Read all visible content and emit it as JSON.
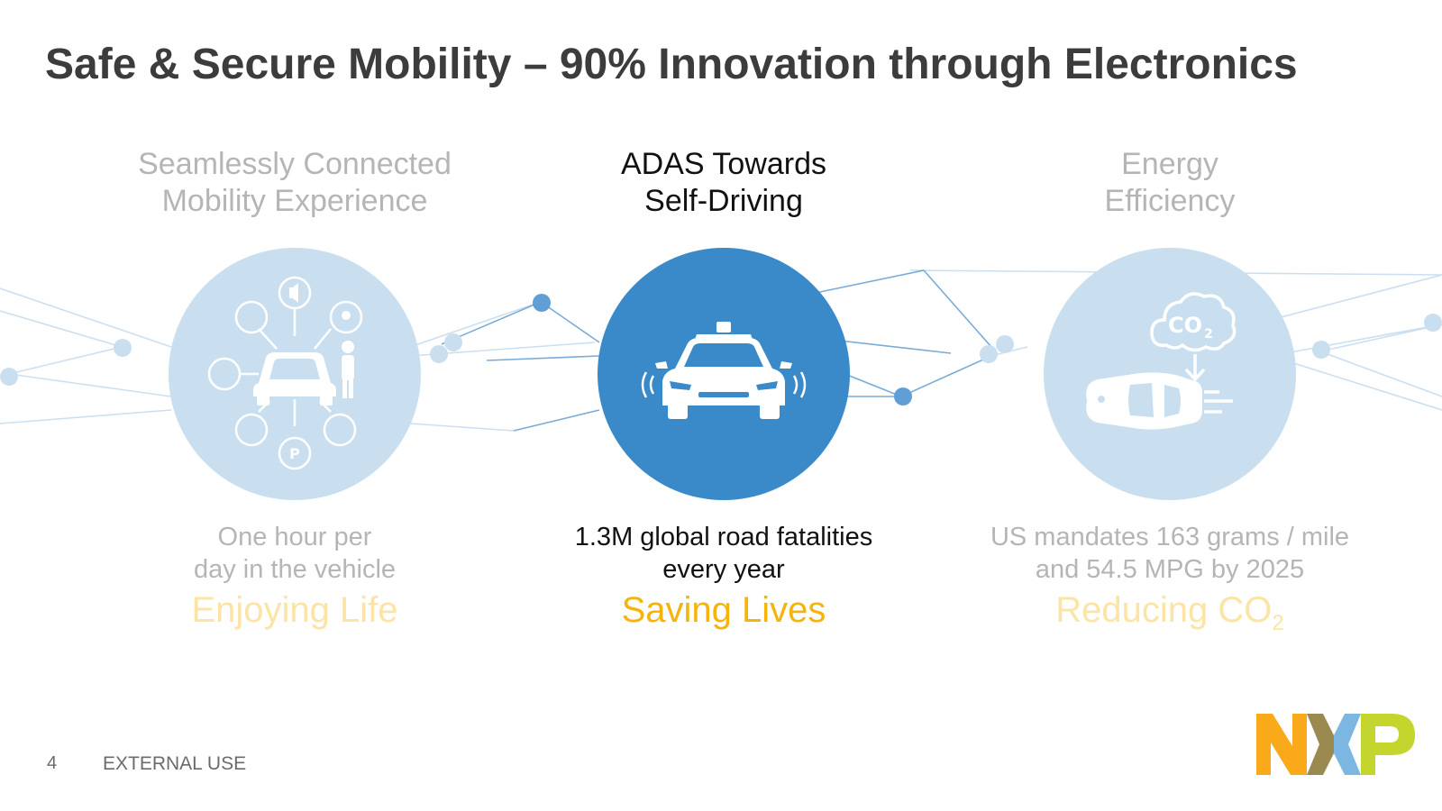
{
  "slide": {
    "title": "Safe & Secure Mobility – 90% Innovation through Electronics",
    "page_number": "4",
    "classification": "EXTERNAL USE"
  },
  "pillars": [
    {
      "heading_line1": "Seamlessly Connected",
      "heading_line2": "Mobility Experience",
      "desc_line1": "One hour per",
      "desc_line2": "day in the vehicle",
      "tagline": "Enjoying Life",
      "icon": "connected-car-icon",
      "state": "faded"
    },
    {
      "heading_line1": "ADAS Towards",
      "heading_line2": "Self-Driving",
      "desc_line1": "1.3M global road fatalities",
      "desc_line2": "every year",
      "tagline": "Saving Lives",
      "icon": "autonomous-car-icon",
      "state": "active"
    },
    {
      "heading_line1": "Energy",
      "heading_line2": "Efficiency",
      "desc_line1": "US mandates 163 grams / mile",
      "desc_line2": "and 54.5 MPG by 2025",
      "tagline": "Reducing CO",
      "tagline_subscript": "2",
      "icon": "co2-emission-car-icon",
      "state": "faded",
      "cloud_label": "CO",
      "cloud_subscript": "2"
    }
  ],
  "logo": {
    "text": "NXP",
    "colors": [
      "#f9a91a",
      "#9a8a4f",
      "#7bb7e0",
      "#c4d52d"
    ]
  },
  "colors": {
    "title": "#3c3c3c",
    "active_circle": "#3a8ac9",
    "faded_circle": "#c9dff0",
    "accent_yellow": "#f5b40a",
    "network_line": "#6ea6d6"
  }
}
